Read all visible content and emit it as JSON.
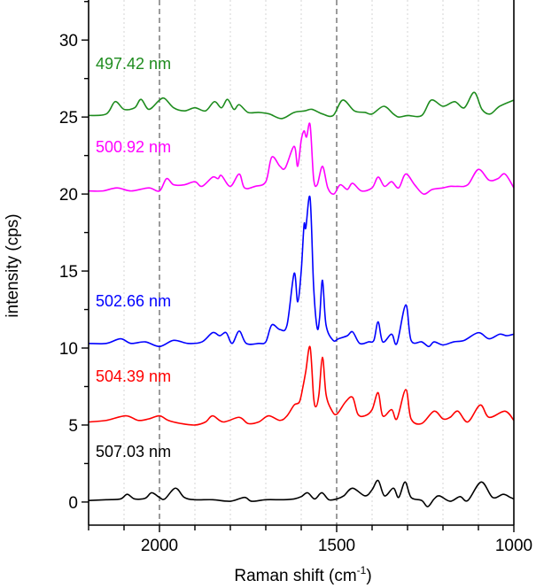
{
  "chart_data": {
    "type": "line",
    "title": "",
    "xlabel": "Raman shift (cm",
    "xlabel_sup": "-1",
    "xlabel_end": ")",
    "ylabel": "intensity (cps)",
    "xlim": [
      2200,
      1000
    ],
    "x_reversed": true,
    "ylim": [
      -1.5,
      32.6
    ],
    "xticks": [
      2000,
      1500,
      1000
    ],
    "xticks_minor_step": 100,
    "yticks": [
      0,
      5,
      10,
      15,
      20,
      25,
      30
    ],
    "yticks_minor_step": 2.5,
    "grid": "vertical dotted every 100; dashed at 2000 and 1500",
    "dashed_lines_x": [
      2000,
      1500
    ],
    "legend": "inline labels above each trace",
    "series": [
      {
        "name": "507.03 nm",
        "color": "#000000",
        "points": [
          [
            2200,
            0.1
          ],
          [
            2150,
            0.15
          ],
          [
            2110,
            0.2
          ],
          [
            2091,
            0.5
          ],
          [
            2070,
            0.2
          ],
          [
            2040,
            0.25
          ],
          [
            2022,
            0.6
          ],
          [
            2000,
            0.3
          ],
          [
            1985,
            0.2
          ],
          [
            1955,
            0.9
          ],
          [
            1930,
            0.3
          ],
          [
            1900,
            0.15
          ],
          [
            1850,
            0.15
          ],
          [
            1800,
            0.05
          ],
          [
            1760,
            0.3
          ],
          [
            1740,
            0.05
          ],
          [
            1700,
            0.15
          ],
          [
            1650,
            0.15
          ],
          [
            1620,
            0.2
          ],
          [
            1600,
            0.35
          ],
          [
            1582,
            0.6
          ],
          [
            1562,
            0.2
          ],
          [
            1542,
            0.6
          ],
          [
            1522,
            0.15
          ],
          [
            1500,
            0.2
          ],
          [
            1480,
            0.4
          ],
          [
            1455,
            0.9
          ],
          [
            1420,
            0.4
          ],
          [
            1400,
            0.8
          ],
          [
            1383,
            1.4
          ],
          [
            1365,
            0.4
          ],
          [
            1340,
            0.9
          ],
          [
            1325,
            0.3
          ],
          [
            1307,
            1.3
          ],
          [
            1290,
            0.3
          ],
          [
            1260,
            0.1
          ],
          [
            1243,
            -0.3
          ],
          [
            1225,
            0.2
          ],
          [
            1210,
            0.4
          ],
          [
            1180,
            0.05
          ],
          [
            1152,
            0.35
          ],
          [
            1130,
            0.1
          ],
          [
            1092,
            1.3
          ],
          [
            1060,
            0.3
          ],
          [
            1030,
            0.5
          ],
          [
            1010,
            0.3
          ],
          [
            1000,
            0.2
          ]
        ]
      },
      {
        "name": "504.39 nm",
        "color": "#ff0000",
        "points": [
          [
            2200,
            5.2
          ],
          [
            2150,
            5.3
          ],
          [
            2095,
            5.6
          ],
          [
            2060,
            5.3
          ],
          [
            2030,
            5.4
          ],
          [
            2000,
            5.6
          ],
          [
            1975,
            5.3
          ],
          [
            1940,
            5.1
          ],
          [
            1900,
            5.0
          ],
          [
            1870,
            5.2
          ],
          [
            1850,
            5.6
          ],
          [
            1820,
            5.2
          ],
          [
            1775,
            5.5
          ],
          [
            1750,
            5.1
          ],
          [
            1720,
            5.2
          ],
          [
            1692,
            5.6
          ],
          [
            1660,
            5.3
          ],
          [
            1640,
            5.6
          ],
          [
            1620,
            6.3
          ],
          [
            1605,
            6.5
          ],
          [
            1595,
            7.5
          ],
          [
            1587,
            8.5
          ],
          [
            1575,
            10.07
          ],
          [
            1565,
            6.8
          ],
          [
            1558,
            6.2
          ],
          [
            1550,
            7.0
          ],
          [
            1540,
            9.4
          ],
          [
            1530,
            7.0
          ],
          [
            1515,
            6.0
          ],
          [
            1500,
            5.7
          ],
          [
            1475,
            6.5
          ],
          [
            1455,
            6.8
          ],
          [
            1440,
            5.7
          ],
          [
            1420,
            5.6
          ],
          [
            1400,
            6.0
          ],
          [
            1383,
            7.1
          ],
          [
            1370,
            5.6
          ],
          [
            1345,
            6.0
          ],
          [
            1330,
            5.4
          ],
          [
            1305,
            7.3
          ],
          [
            1290,
            5.4
          ],
          [
            1260,
            5.1
          ],
          [
            1225,
            5.9
          ],
          [
            1200,
            5.4
          ],
          [
            1180,
            5.5
          ],
          [
            1158,
            5.9
          ],
          [
            1130,
            5.2
          ],
          [
            1095,
            6.3
          ],
          [
            1070,
            5.5
          ],
          [
            1025,
            5.9
          ],
          [
            1000,
            5.3
          ]
        ]
      },
      {
        "name": "502.66 nm",
        "color": "#0000ff",
        "points": [
          [
            2200,
            10.3
          ],
          [
            2150,
            10.3
          ],
          [
            2110,
            10.6
          ],
          [
            2080,
            10.3
          ],
          [
            2040,
            10.4
          ],
          [
            2000,
            10.1
          ],
          [
            1960,
            10.5
          ],
          [
            1920,
            10.3
          ],
          [
            1880,
            10.4
          ],
          [
            1850,
            11.0
          ],
          [
            1830,
            10.8
          ],
          [
            1812,
            11.0
          ],
          [
            1795,
            10.3
          ],
          [
            1775,
            11.1
          ],
          [
            1755,
            10.3
          ],
          [
            1720,
            10.3
          ],
          [
            1700,
            10.4
          ],
          [
            1683,
            11.5
          ],
          [
            1660,
            11.2
          ],
          [
            1640,
            11.5
          ],
          [
            1620,
            14.85
          ],
          [
            1610,
            13.0
          ],
          [
            1600,
            15.0
          ],
          [
            1592,
            18.0
          ],
          [
            1587,
            17.8
          ],
          [
            1575,
            19.75
          ],
          [
            1565,
            14.0
          ],
          [
            1555,
            11.3
          ],
          [
            1548,
            12.0
          ],
          [
            1540,
            14.4
          ],
          [
            1530,
            11.5
          ],
          [
            1510,
            10.5
          ],
          [
            1495,
            10.6
          ],
          [
            1470,
            10.8
          ],
          [
            1455,
            11.05
          ],
          [
            1435,
            10.3
          ],
          [
            1410,
            10.4
          ],
          [
            1395,
            10.5
          ],
          [
            1383,
            11.7
          ],
          [
            1370,
            10.4
          ],
          [
            1345,
            10.9
          ],
          [
            1330,
            10.3
          ],
          [
            1305,
            12.8
          ],
          [
            1290,
            10.5
          ],
          [
            1260,
            10.4
          ],
          [
            1240,
            10.1
          ],
          [
            1225,
            10.4
          ],
          [
            1200,
            10.2
          ],
          [
            1170,
            10.4
          ],
          [
            1140,
            10.5
          ],
          [
            1100,
            11.0
          ],
          [
            1070,
            10.6
          ],
          [
            1040,
            10.9
          ],
          [
            1020,
            10.8
          ],
          [
            1000,
            10.9
          ]
        ]
      },
      {
        "name": "500.92 nm",
        "color": "#ff00ff",
        "points": [
          [
            2200,
            20.2
          ],
          [
            2160,
            20.2
          ],
          [
            2120,
            20.4
          ],
          [
            2080,
            20.2
          ],
          [
            2030,
            20.4
          ],
          [
            2000,
            20.2
          ],
          [
            1980,
            21.0
          ],
          [
            1960,
            20.6
          ],
          [
            1930,
            20.6
          ],
          [
            1900,
            20.8
          ],
          [
            1880,
            20.5
          ],
          [
            1850,
            21.1
          ],
          [
            1835,
            21.0
          ],
          [
            1825,
            21.2
          ],
          [
            1800,
            20.5
          ],
          [
            1775,
            21.3
          ],
          [
            1760,
            20.4
          ],
          [
            1730,
            20.5
          ],
          [
            1700,
            20.8
          ],
          [
            1683,
            22.4
          ],
          [
            1660,
            21.8
          ],
          [
            1645,
            21.7
          ],
          [
            1620,
            23.1
          ],
          [
            1610,
            21.8
          ],
          [
            1600,
            23.5
          ],
          [
            1592,
            24.1
          ],
          [
            1585,
            23.7
          ],
          [
            1575,
            24.5
          ],
          [
            1565,
            21.0
          ],
          [
            1555,
            20.6
          ],
          [
            1540,
            21.8
          ],
          [
            1525,
            20.4
          ],
          [
            1508,
            20.0
          ],
          [
            1490,
            20.6
          ],
          [
            1470,
            20.3
          ],
          [
            1455,
            20.7
          ],
          [
            1430,
            20.2
          ],
          [
            1400,
            20.4
          ],
          [
            1383,
            21.1
          ],
          [
            1365,
            20.5
          ],
          [
            1345,
            20.8
          ],
          [
            1325,
            20.4
          ],
          [
            1305,
            21.3
          ],
          [
            1280,
            20.6
          ],
          [
            1255,
            20.0
          ],
          [
            1230,
            20.3
          ],
          [
            1200,
            20.4
          ],
          [
            1180,
            20.5
          ],
          [
            1160,
            20.5
          ],
          [
            1130,
            20.6
          ],
          [
            1100,
            21.6
          ],
          [
            1070,
            20.9
          ],
          [
            1045,
            21.0
          ],
          [
            1025,
            21.3
          ],
          [
            1000,
            20.4
          ]
        ]
      },
      {
        "name": "497.42 nm",
        "color": "#1e8c1e",
        "points": [
          [
            2200,
            25.1
          ],
          [
            2150,
            25.2
          ],
          [
            2125,
            26.0
          ],
          [
            2100,
            25.5
          ],
          [
            2070,
            25.6
          ],
          [
            2052,
            26.15
          ],
          [
            2030,
            25.5
          ],
          [
            2000,
            26.1
          ],
          [
            1985,
            26.2
          ],
          [
            1960,
            25.6
          ],
          [
            1930,
            25.4
          ],
          [
            1900,
            25.6
          ],
          [
            1870,
            25.4
          ],
          [
            1845,
            26.0
          ],
          [
            1825,
            25.6
          ],
          [
            1808,
            26.15
          ],
          [
            1790,
            25.5
          ],
          [
            1775,
            25.8
          ],
          [
            1750,
            25.3
          ],
          [
            1720,
            25.3
          ],
          [
            1690,
            25.2
          ],
          [
            1655,
            24.9
          ],
          [
            1620,
            25.3
          ],
          [
            1590,
            25.4
          ],
          [
            1570,
            25.5
          ],
          [
            1540,
            25.2
          ],
          [
            1510,
            25.1
          ],
          [
            1483,
            26.1
          ],
          [
            1450,
            25.4
          ],
          [
            1420,
            25.3
          ],
          [
            1400,
            25.2
          ],
          [
            1367,
            25.7
          ],
          [
            1340,
            25.2
          ],
          [
            1325,
            25.0
          ],
          [
            1300,
            25.1
          ],
          [
            1260,
            25.1
          ],
          [
            1233,
            26.1
          ],
          [
            1200,
            25.7
          ],
          [
            1167,
            26.0
          ],
          [
            1140,
            25.6
          ],
          [
            1112,
            26.6
          ],
          [
            1090,
            25.5
          ],
          [
            1067,
            25.2
          ],
          [
            1040,
            25.7
          ],
          [
            1000,
            26.1
          ]
        ]
      }
    ]
  }
}
